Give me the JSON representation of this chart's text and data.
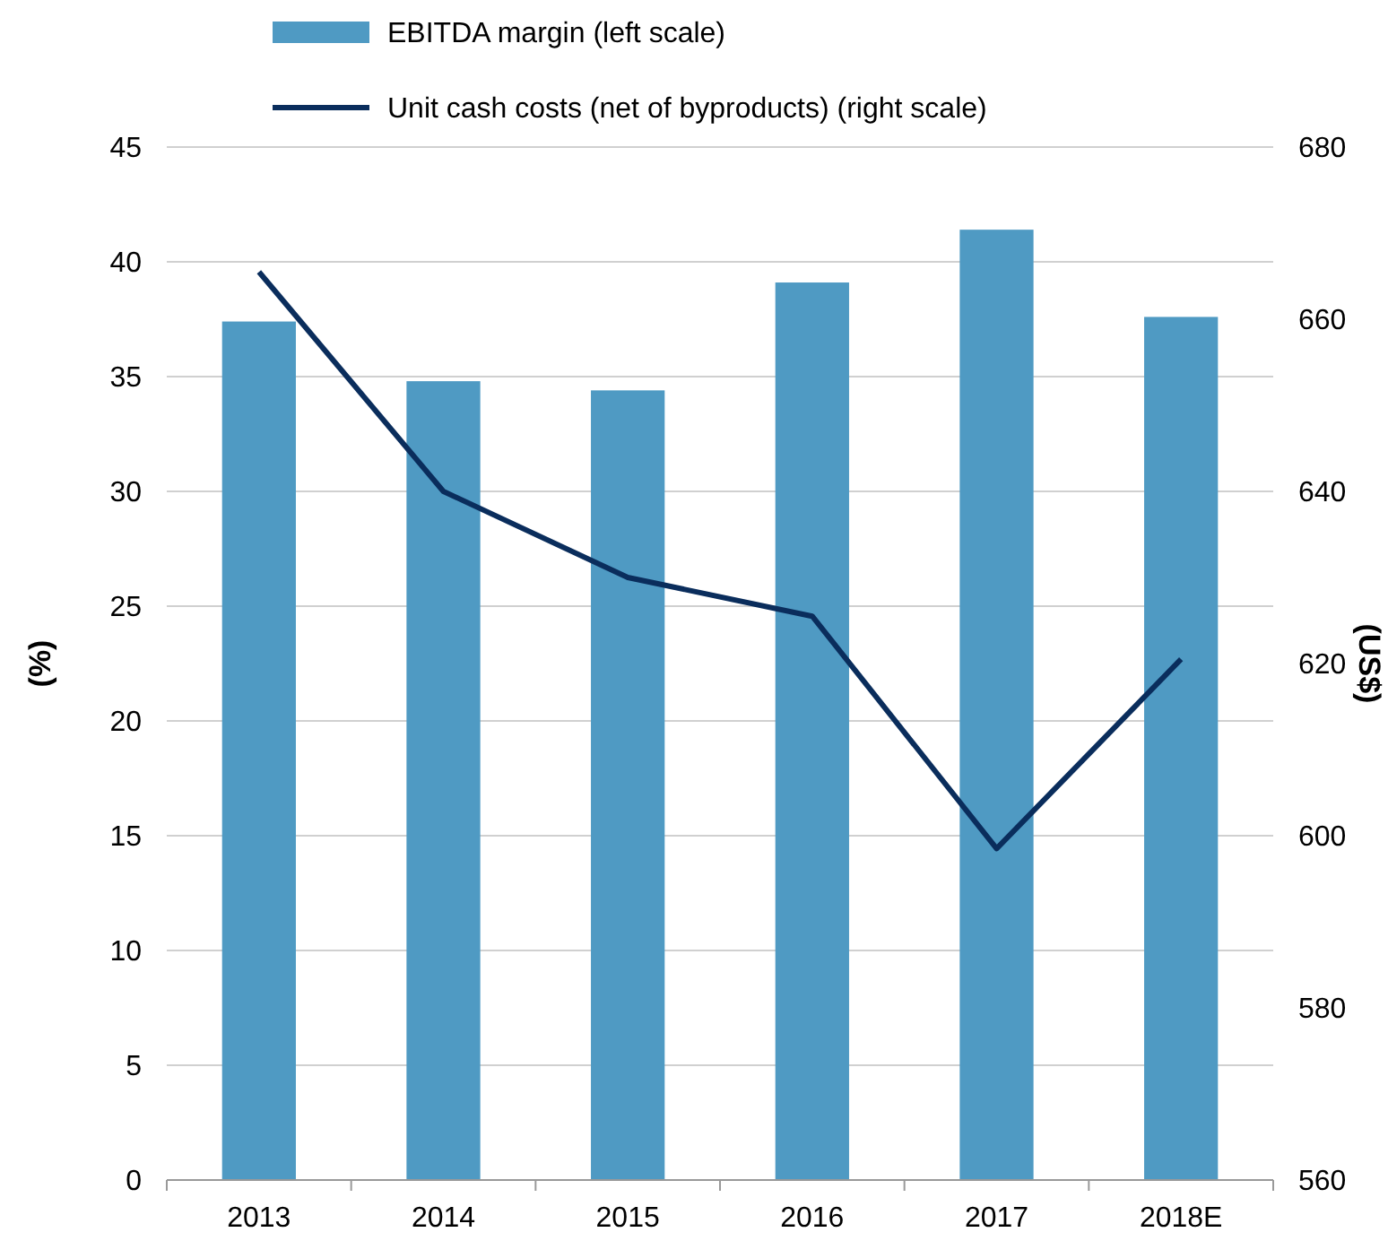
{
  "chart_data": {
    "type": "bar",
    "ylabel": "(%)",
    "y2label": "(US$)",
    "categories": [
      "2013",
      "2014",
      "2015",
      "2016",
      "2017",
      "2018E"
    ],
    "series": [
      {
        "name": "EBITDA margin (left scale)",
        "color": "#4f9ac3",
        "values": [
          37.4,
          34.8,
          34.4,
          39.1,
          41.4,
          37.6
        ]
      },
      {
        "name": "Unit cash costs (net of byproducts) (right scale)",
        "type": "line",
        "axis": "y2",
        "color": "#0a2d5c",
        "values": [
          665.5,
          640,
          630,
          625.5,
          598.5,
          620.5
        ]
      }
    ],
    "ylim": [
      0,
      45
    ],
    "yticks": [
      0,
      5,
      10,
      15,
      20,
      25,
      30,
      35,
      40,
      45
    ],
    "y2lim": [
      560,
      680
    ],
    "y2ticks": [
      560,
      580,
      600,
      620,
      640,
      660,
      680
    ],
    "grid": "y",
    "legend": "top",
    "marker": "none",
    "line_style": "solid"
  }
}
